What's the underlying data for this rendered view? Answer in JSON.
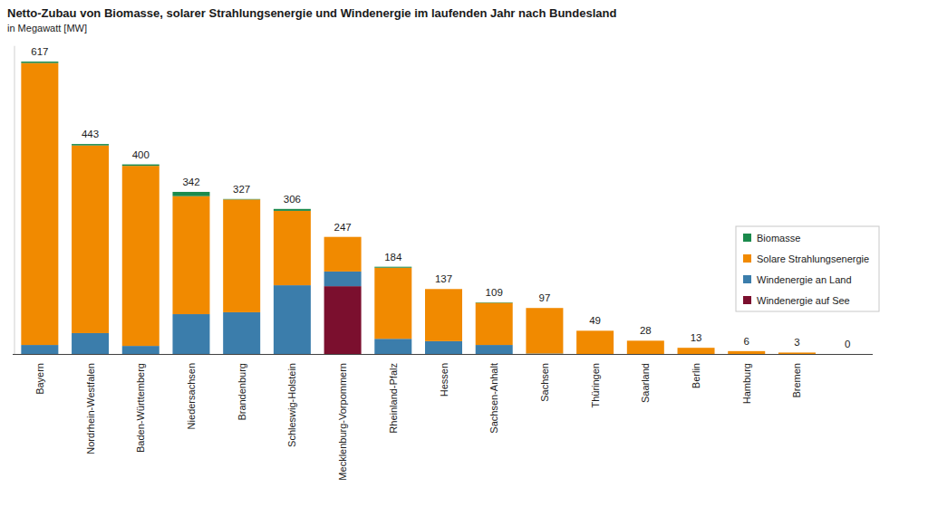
{
  "chart_data": {
    "type": "bar",
    "title": "Netto-Zubau von Biomasse, solarer Strahlungsenergie und Windenergie im laufenden Jahr nach Bundesland",
    "subtitle": "in Megawatt [MW]",
    "categories": [
      "Bayern",
      "Nordrhein-Westfalen",
      "Baden-Württemberg",
      "Niedersachsen",
      "Brandenburg",
      "Schleswig-Holstein",
      "Mecklenburg-Vorpommern",
      "Rheinland-Pfalz",
      "Hessen",
      "Sachsen-Anhalt",
      "Sachsen",
      "Thüringen",
      "Saarland",
      "Berlin",
      "Hamburg",
      "Bremen",
      null
    ],
    "series": [
      {
        "name": "Windenergie auf See",
        "color": "#7b0f2e",
        "values": [
          0,
          0,
          0,
          0,
          0,
          0,
          143,
          0,
          0,
          0,
          0,
          0,
          0,
          0,
          0,
          0,
          0
        ]
      },
      {
        "name": "Windenergie an Land",
        "color": "#3b7dab",
        "values": [
          19,
          44,
          17,
          84,
          88,
          145,
          31,
          32,
          27,
          19,
          1,
          0,
          0,
          0,
          0,
          0,
          0
        ]
      },
      {
        "name": "Solare Strahlungsenergie",
        "color": "#f18a00",
        "values": [
          595,
          396,
          380,
          249,
          238,
          157,
          73,
          150,
          110,
          89,
          96,
          49,
          28,
          13,
          6,
          3,
          0
        ]
      },
      {
        "name": "Biomasse",
        "color": "#1b8a4c",
        "values": [
          3,
          3,
          3,
          9,
          1,
          4,
          0,
          2,
          0,
          1,
          0,
          0,
          0,
          0,
          0,
          0,
          0
        ]
      }
    ],
    "totals": [
      617,
      443,
      400,
      342,
      327,
      306,
      247,
      184,
      137,
      109,
      97,
      49,
      28,
      13,
      6,
      3,
      0
    ],
    "ylim": [
      0,
      650
    ],
    "stacked": true,
    "tick_labels": "x",
    "legend": "right"
  }
}
